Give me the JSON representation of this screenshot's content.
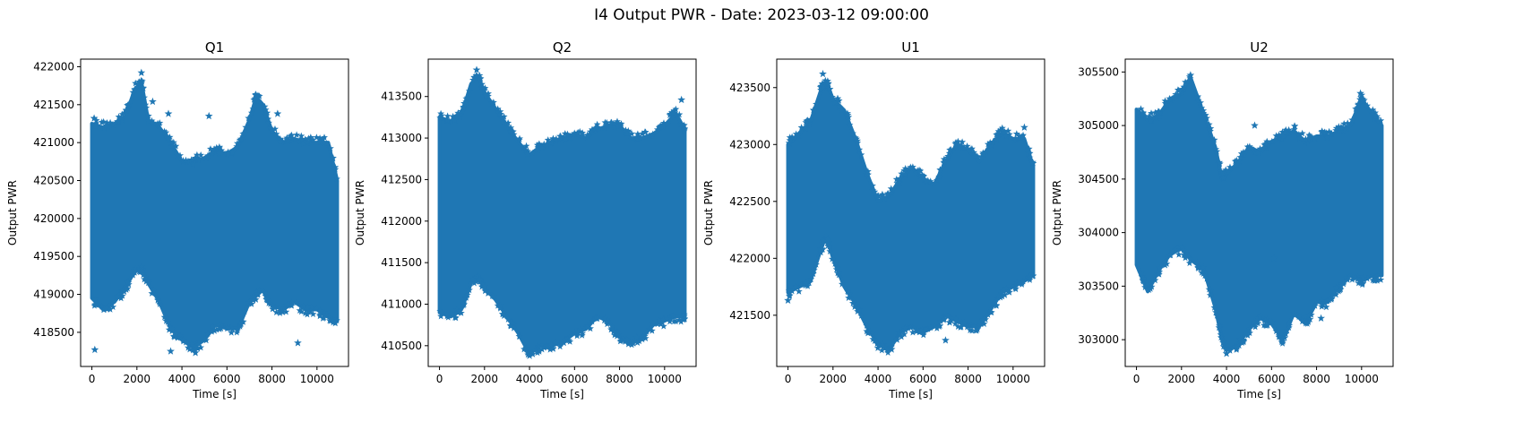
{
  "figure_title": "I4 Output PWR - Date: 2023-03-12 09:00:00",
  "colors": {
    "series": "#1f77b4",
    "axes": "#000000",
    "background": "#ffffff"
  },
  "chart_data": [
    {
      "type": "scatter",
      "marker": "star",
      "title": "Q1",
      "xlabel": "Time [s]",
      "ylabel": "Output PWR",
      "xlim": [
        -500,
        11400
      ],
      "ylim": [
        418050,
        422100
      ],
      "xticks": [
        0,
        2000,
        4000,
        6000,
        8000,
        10000
      ],
      "yticks": [
        418500,
        419000,
        419500,
        420000,
        420500,
        421000,
        421500,
        422000
      ],
      "grid": false,
      "series": [
        {
          "x": [
            0,
            500,
            1000,
            1500,
            1900,
            2200,
            2500,
            3000,
            3500,
            4000,
            4500,
            5000,
            5500,
            6000,
            6500,
            7000,
            7300,
            7600,
            8000,
            8500,
            9000,
            9500,
            10000,
            10500,
            10900
          ],
          "upper": [
            421250,
            421200,
            421250,
            421350,
            421700,
            421800,
            421300,
            421200,
            421000,
            420750,
            420750,
            420800,
            420900,
            420850,
            420950,
            421300,
            421600,
            421500,
            421150,
            421000,
            421050,
            421000,
            421000,
            421000,
            420500
          ],
          "lower": [
            418950,
            418800,
            418900,
            419100,
            419300,
            419350,
            419150,
            418900,
            418550,
            418400,
            418300,
            418400,
            418600,
            418550,
            418550,
            418900,
            419000,
            419050,
            418850,
            418800,
            418900,
            418800,
            418800,
            418700,
            418650
          ],
          "outliers": [
            [
              100,
              421320
            ],
            [
              130,
              418270
            ],
            [
              2200,
              421920
            ],
            [
              2700,
              421540
            ],
            [
              3400,
              421380
            ],
            [
              3500,
              418250
            ],
            [
              4600,
              418230
            ],
            [
              9150,
              418360
            ],
            [
              6850,
              421200
            ],
            [
              8250,
              421380
            ],
            [
              5200,
              421350
            ]
          ]
        }
      ]
    },
    {
      "type": "scatter",
      "marker": "star",
      "title": "Q2",
      "xlabel": "Time [s]",
      "ylabel": "Output PWR",
      "xlim": [
        -500,
        11400
      ],
      "ylim": [
        410250,
        413950
      ],
      "xticks": [
        0,
        2000,
        4000,
        6000,
        8000,
        10000
      ],
      "yticks": [
        410500,
        411000,
        411500,
        412000,
        412500,
        413000,
        413500
      ],
      "grid": false,
      "series": [
        {
          "x": [
            0,
            500,
            1000,
            1400,
            1700,
            2000,
            2500,
            3000,
            3500,
            4000,
            4500,
            5000,
            5500,
            6000,
            6500,
            7000,
            7500,
            8000,
            8500,
            9000,
            9500,
            10000,
            10500,
            10900
          ],
          "upper": [
            413250,
            413200,
            413300,
            413650,
            413750,
            413550,
            413350,
            413150,
            412950,
            412800,
            412900,
            412950,
            413000,
            413050,
            413000,
            413100,
            413150,
            413150,
            413000,
            413000,
            413050,
            413150,
            413300,
            413100
          ],
          "lower": [
            410900,
            410850,
            410950,
            411250,
            411350,
            411200,
            411050,
            410850,
            410650,
            410400,
            410500,
            410500,
            410550,
            410650,
            410700,
            410850,
            410800,
            410600,
            410550,
            410600,
            410750,
            410800,
            410850,
            410850
          ],
          "outliers": [
            [
              1650,
              413820
            ],
            [
              10750,
              413460
            ],
            [
              4000,
              410380
            ],
            [
              8600,
              410530
            ]
          ]
        }
      ]
    },
    {
      "type": "scatter",
      "marker": "star",
      "title": "U1",
      "xlabel": "Time [s]",
      "ylabel": "Output PWR",
      "xlim": [
        -500,
        11400
      ],
      "ylim": [
        421050,
        423750
      ],
      "xticks": [
        0,
        2000,
        4000,
        6000,
        8000,
        10000
      ],
      "yticks": [
        421500,
        422000,
        422500,
        423000,
        423500
      ],
      "grid": false,
      "series": [
        {
          "x": [
            0,
            500,
            1000,
            1500,
            1700,
            2000,
            2500,
            3000,
            3500,
            4000,
            4500,
            5000,
            5500,
            6000,
            6500,
            7000,
            7500,
            8000,
            8500,
            9000,
            9500,
            10000,
            10500,
            10900
          ],
          "upper": [
            423000,
            423100,
            423200,
            423500,
            423550,
            423400,
            423300,
            423050,
            422750,
            422500,
            422550,
            422700,
            422800,
            422700,
            422650,
            422850,
            423000,
            422950,
            422850,
            423000,
            423100,
            423050,
            423050,
            422800
          ],
          "lower": [
            421700,
            421750,
            421800,
            422100,
            422200,
            422000,
            421750,
            421600,
            421400,
            421250,
            421200,
            421350,
            421400,
            421350,
            421400,
            421500,
            421450,
            421400,
            421400,
            421550,
            421700,
            421750,
            421800,
            421850
          ],
          "outliers": [
            [
              0,
              421630
            ],
            [
              1550,
              423620
            ],
            [
              4600,
              421200
            ],
            [
              7000,
              421280
            ],
            [
              10500,
              423150
            ]
          ]
        }
      ]
    },
    {
      "type": "scatter",
      "marker": "star",
      "title": "U2",
      "xlabel": "Time [s]",
      "ylabel": "Output PWR",
      "xlim": [
        -500,
        11400
      ],
      "ylim": [
        302750,
        305620
      ],
      "xticks": [
        0,
        2000,
        4000,
        6000,
        8000,
        10000
      ],
      "yticks": [
        303000,
        303500,
        304000,
        304500,
        305000,
        305500
      ],
      "grid": false,
      "series": [
        {
          "x": [
            0,
            500,
            1000,
            1500,
            2000,
            2400,
            3000,
            3500,
            3800,
            4000,
            4500,
            5000,
            5500,
            6000,
            6500,
            7000,
            7500,
            8000,
            8500,
            9000,
            9500,
            10000,
            10500,
            10900
          ],
          "upper": [
            305150,
            305050,
            305100,
            305250,
            305300,
            305450,
            305100,
            304800,
            304500,
            304550,
            304650,
            304800,
            304750,
            304850,
            304900,
            304950,
            304850,
            304900,
            304900,
            304950,
            305000,
            305250,
            305100,
            305000
          ],
          "lower": [
            303700,
            303450,
            303650,
            303800,
            303850,
            303750,
            303650,
            303300,
            303000,
            302900,
            302950,
            303100,
            303200,
            303150,
            303000,
            303250,
            303150,
            303350,
            303350,
            303500,
            303600,
            303550,
            303600,
            303600
          ],
          "outliers": [
            [
              2400,
              305470
            ],
            [
              4000,
              302870
            ],
            [
              5250,
              305000
            ],
            [
              6100,
              303760
            ],
            [
              8200,
              303200
            ],
            [
              9950,
              305300
            ],
            [
              4750,
              302980
            ]
          ]
        }
      ]
    }
  ]
}
